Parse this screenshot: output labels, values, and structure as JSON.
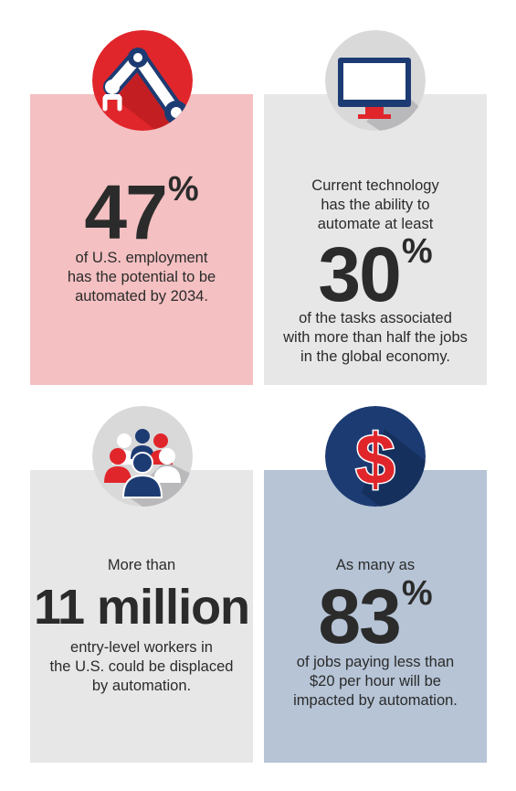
{
  "stat1": {
    "icon": "robot-arm-icon",
    "number": "47",
    "unit": "%",
    "caption": [
      "of U.S. employment",
      "has the potential to be",
      "automated by 2034."
    ]
  },
  "stat2": {
    "icon": "computer-monitor-icon",
    "intro": [
      "Current technology",
      "has the ability to",
      "automate at least"
    ],
    "number": "30",
    "unit": "%",
    "caption": [
      "of the tasks associated",
      "with more than half the jobs",
      "in the global economy."
    ]
  },
  "stat3": {
    "icon": "workers-group-icon",
    "intro": [
      "More than"
    ],
    "number": "11 million",
    "caption": [
      "entry-level workers in",
      "the U.S. could be displaced",
      "by automation."
    ]
  },
  "stat4": {
    "icon": "dollar-sign-icon",
    "intro": [
      "As many as"
    ],
    "number": "83",
    "unit": "%",
    "caption": [
      "of jobs paying less than",
      "$20 per hour will be",
      "impacted by automation."
    ]
  },
  "colors": {
    "red": "#e0262b",
    "navy": "#1d3b73",
    "pink_panel": "#f4c0c2",
    "gray_panel": "#e7e7e8",
    "blue_panel": "#b6c4d6",
    "text": "#2b2b2b"
  }
}
